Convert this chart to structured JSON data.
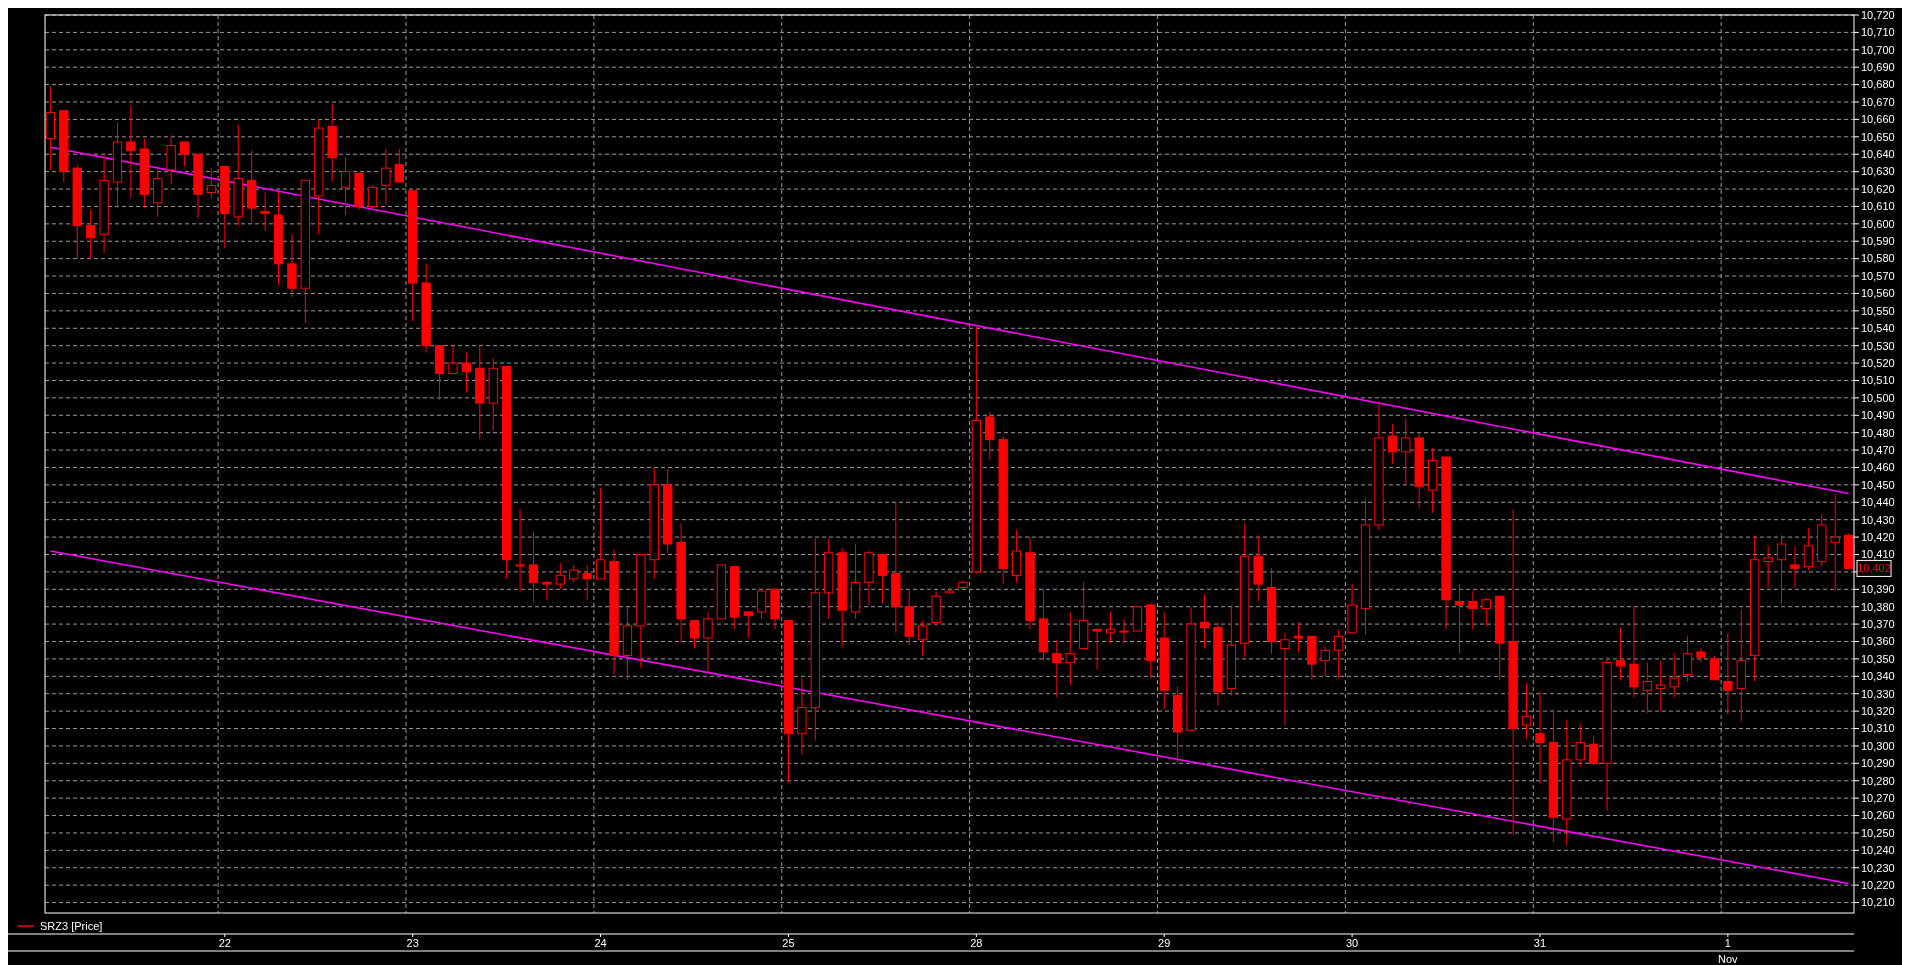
{
  "chart_data": {
    "type": "candlestick",
    "categories": [
      null,
      null,
      null,
      null,
      null,
      null,
      null,
      null,
      null,
      null,
      null,
      null,
      null,
      "22",
      null,
      null,
      null,
      null,
      null,
      null,
      null,
      null,
      null,
      null,
      null,
      null,
      null,
      "23",
      null,
      null,
      null,
      null,
      null,
      null,
      null,
      null,
      null,
      null,
      null,
      null,
      null,
      "24",
      null,
      null,
      null,
      null,
      null,
      null,
      null,
      null,
      null,
      null,
      null,
      null,
      null,
      "25",
      null,
      null,
      null,
      null,
      null,
      null,
      null,
      null,
      null,
      null,
      null,
      null,
      null,
      "28",
      null,
      null,
      null,
      null,
      null,
      null,
      null,
      null,
      null,
      null,
      null,
      null,
      null,
      "29",
      null,
      null,
      null,
      null,
      null,
      null,
      null,
      null,
      null,
      null,
      null,
      null,
      null,
      "30",
      null,
      null,
      null,
      null,
      null,
      null,
      null,
      null,
      null,
      null,
      null,
      null,
      null,
      "31",
      null,
      null,
      null,
      null,
      null,
      null,
      null,
      null,
      null,
      null,
      null,
      null,
      null,
      "1",
      null,
      null,
      null,
      null,
      null,
      null,
      null,
      null,
      null
    ],
    "series": [
      {
        "name": "SRZ3 [Price]",
        "color": "#ff0000",
        "ohlc": [
          [
            10649,
            10679,
            10631,
            10664
          ],
          [
            10665,
            10665,
            10624,
            10630
          ],
          [
            10632,
            10634,
            10580,
            10599
          ],
          [
            10599,
            10608,
            10580,
            10592
          ],
          [
            10594,
            10640,
            10583,
            10625
          ],
          [
            10624,
            10658,
            10609,
            10647
          ],
          [
            10647,
            10668,
            10615,
            10642
          ],
          [
            10643,
            10649,
            10609,
            10617
          ],
          [
            10612,
            10631,
            10604,
            10626
          ],
          [
            10631,
            10651,
            10623,
            10645
          ],
          [
            10647,
            10647,
            10633,
            10640
          ],
          [
            10640,
            10640,
            10603,
            10617
          ],
          [
            10618,
            10632,
            10615,
            10622
          ],
          [
            10633,
            10633,
            10586,
            10606
          ],
          [
            10604,
            10657,
            10599,
            10626
          ],
          [
            10625,
            10642,
            10601,
            10609
          ],
          [
            10607,
            10618,
            10596,
            10606
          ],
          [
            10605,
            10618,
            10565,
            10577
          ],
          [
            10577,
            10594,
            10558,
            10563
          ],
          [
            10563,
            10625,
            10543,
            10625
          ],
          [
            10616,
            10660,
            10594,
            10655
          ],
          [
            10656,
            10669,
            10624,
            10638
          ],
          [
            10621,
            10638,
            10605,
            10630
          ],
          [
            10629,
            10629,
            10608,
            10610
          ],
          [
            10610,
            10622,
            10609,
            10621
          ],
          [
            10622,
            10643,
            10611,
            10632
          ],
          [
            10634,
            10643,
            10624,
            10624
          ],
          [
            10619,
            10619,
            10544,
            10566
          ],
          [
            10566,
            10577,
            10526,
            10530
          ],
          [
            10530,
            10530,
            10499,
            10514
          ],
          [
            10514,
            10530,
            10514,
            10520
          ],
          [
            10520,
            10526,
            10503,
            10515
          ],
          [
            10517,
            10530,
            10476,
            10497
          ],
          [
            10497,
            10523,
            10481,
            10517
          ],
          [
            10518,
            10518,
            10396,
            10407
          ],
          [
            10404,
            10436,
            10389,
            10404
          ],
          [
            10404,
            10423,
            10383,
            10394
          ],
          [
            10394,
            10395,
            10384,
            10393
          ],
          [
            10393,
            10405,
            10390,
            10398
          ],
          [
            10396,
            10404,
            10394,
            10401
          ],
          [
            10399,
            10404,
            10384,
            10396
          ],
          [
            10396,
            10448,
            10396,
            10407
          ],
          [
            10406,
            10413,
            10341,
            10352
          ],
          [
            10352,
            10380,
            10338,
            10369
          ],
          [
            10369,
            10410,
            10345,
            10410
          ],
          [
            10407,
            10460,
            10396,
            10450
          ],
          [
            10450,
            10459,
            10411,
            10416
          ],
          [
            10417,
            10428,
            10359,
            10373
          ],
          [
            10372,
            10372,
            10356,
            10362
          ],
          [
            10362,
            10377,
            10342,
            10373
          ],
          [
            10373,
            10404,
            10373,
            10404
          ],
          [
            10403,
            10403,
            10367,
            10374
          ],
          [
            10377,
            10377,
            10362,
            10375
          ],
          [
            10377,
            10389,
            10373,
            10389
          ],
          [
            10390,
            10390,
            10367,
            10373
          ],
          [
            10372,
            10372,
            10279,
            10307
          ],
          [
            10307,
            10339,
            10295,
            10322
          ],
          [
            10322,
            10419,
            10303,
            10388
          ],
          [
            10388,
            10419,
            10373,
            10411
          ],
          [
            10411,
            10414,
            10357,
            10378
          ],
          [
            10377,
            10416,
            10373,
            10394
          ],
          [
            10394,
            10412,
            10381,
            10411
          ],
          [
            10410,
            10410,
            10382,
            10398
          ],
          [
            10399,
            10440,
            10365,
            10380
          ],
          [
            10380,
            10390,
            10358,
            10363
          ],
          [
            10361,
            10372,
            10352,
            10369
          ],
          [
            10371,
            10389,
            10369,
            10386
          ],
          [
            10388,
            10391,
            10388,
            10389
          ],
          [
            10391,
            10395,
            10391,
            10394
          ],
          [
            10400,
            10541,
            10399,
            10487
          ],
          [
            10489,
            10492,
            10464,
            10476
          ],
          [
            10476,
            10478,
            10393,
            10402
          ],
          [
            10398,
            10424,
            10394,
            10412
          ],
          [
            10411,
            10420,
            10367,
            10372
          ],
          [
            10373,
            10390,
            10349,
            10354
          ],
          [
            10353,
            10361,
            10328,
            10348
          ],
          [
            10348,
            10377,
            10335,
            10353
          ],
          [
            10356,
            10394,
            10356,
            10372
          ],
          [
            10367,
            10367,
            10344,
            10366
          ],
          [
            10365,
            10377,
            10359,
            10367
          ],
          [
            10366,
            10373,
            10359,
            10366
          ],
          [
            10366,
            10380,
            10366,
            10380
          ],
          [
            10381,
            10382,
            10339,
            10349
          ],
          [
            10362,
            10377,
            10321,
            10332
          ],
          [
            10329,
            10334,
            10290,
            10308
          ],
          [
            10309,
            10380,
            10309,
            10370
          ],
          [
            10371,
            10387,
            10356,
            10368
          ],
          [
            10368,
            10371,
            10323,
            10331
          ],
          [
            10333,
            10380,
            10329,
            10358
          ],
          [
            10359,
            10428,
            10351,
            10409
          ],
          [
            10409,
            10421,
            10383,
            10393
          ],
          [
            10391,
            10402,
            10353,
            10360
          ],
          [
            10356,
            10365,
            10312,
            10361
          ],
          [
            10363,
            10371,
            10354,
            10362
          ],
          [
            10363,
            10363,
            10338,
            10347
          ],
          [
            10349,
            10357,
            10340,
            10355
          ],
          [
            10355,
            10367,
            10339,
            10363
          ],
          [
            10365,
            10393,
            10365,
            10381
          ],
          [
            10379,
            10442,
            10364,
            10427
          ],
          [
            10427,
            10498,
            10424,
            10477
          ],
          [
            10478,
            10485,
            10462,
            10469
          ],
          [
            10469,
            10488,
            10450,
            10477
          ],
          [
            10477,
            10480,
            10437,
            10449
          ],
          [
            10447,
            10471,
            10434,
            10464
          ],
          [
            10466,
            10466,
            10367,
            10384
          ],
          [
            10383,
            10393,
            10353,
            10381
          ],
          [
            10383,
            10389,
            10367,
            10379
          ],
          [
            10379,
            10385,
            10369,
            10384
          ],
          [
            10386,
            10386,
            10338,
            10359
          ],
          [
            10360,
            10436,
            10249,
            10310
          ],
          [
            10312,
            10336,
            10304,
            10317
          ],
          [
            10307,
            10331,
            10278,
            10302
          ],
          [
            10302,
            10321,
            10245,
            10259
          ],
          [
            10258,
            10315,
            10243,
            10292
          ],
          [
            10292,
            10313,
            10288,
            10302
          ],
          [
            10301,
            10306,
            10289,
            10290
          ],
          [
            10290,
            10351,
            10263,
            10348
          ],
          [
            10349,
            10368,
            10338,
            10346
          ],
          [
            10347,
            10380,
            10328,
            10334
          ],
          [
            10332,
            10348,
            10319,
            10337
          ],
          [
            10333,
            10349,
            10320,
            10335
          ],
          [
            10334,
            10353,
            10328,
            10339
          ],
          [
            10341,
            10363,
            10337,
            10353
          ],
          [
            10354,
            10356,
            10348,
            10351
          ],
          [
            10350,
            10352,
            10338,
            10338
          ],
          [
            10337,
            10365,
            10318,
            10332
          ],
          [
            10333,
            10378,
            10314,
            10349
          ],
          [
            10352,
            10421,
            10337,
            10407
          ],
          [
            10406,
            10415,
            10391,
            10408
          ],
          [
            10407,
            10421,
            10382,
            10416
          ],
          [
            10404,
            10415,
            10391,
            10402
          ],
          [
            10403,
            10425,
            10401,
            10415
          ],
          [
            10406,
            10433,
            10403,
            10427
          ],
          [
            10417,
            10445,
            10389,
            10420
          ],
          [
            10421,
            10422,
            10402,
            10402
          ]
        ]
      },
      {
        "type": "line",
        "color": "#ff00ff",
        "values": [
          10644,
          null,
          null,
          null,
          null,
          null,
          null,
          null,
          null,
          null,
          null,
          null,
          null,
          null,
          null,
          null,
          null,
          null,
          null,
          null,
          null,
          null,
          null,
          null,
          null,
          null,
          null,
          null,
          null,
          null,
          null,
          null,
          null,
          null,
          null,
          null,
          null,
          null,
          null,
          null,
          null,
          null,
          null,
          null,
          null,
          null,
          null,
          null,
          null,
          null,
          null,
          null,
          null,
          null,
          null,
          null,
          null,
          null,
          null,
          null,
          null,
          null,
          null,
          null,
          null,
          null,
          null,
          null,
          null,
          null,
          null,
          null,
          null,
          null,
          null,
          null,
          null,
          null,
          null,
          null,
          null,
          null,
          null,
          null,
          null,
          null,
          null,
          null,
          null,
          null,
          null,
          null,
          null,
          null,
          null,
          null,
          null,
          null,
          null,
          null,
          null,
          null,
          null,
          null,
          null,
          null,
          null,
          null,
          null,
          null,
          null,
          null,
          null,
          null,
          null,
          null,
          null,
          null,
          null,
          null,
          null,
          null,
          null,
          null,
          null,
          null,
          null,
          null,
          null,
          null,
          null,
          null,
          null,
          null,
          10445
        ]
      },
      {
        "type": "line",
        "color": "#ff00ff",
        "values": [
          10412,
          null,
          null,
          null,
          null,
          null,
          null,
          null,
          null,
          null,
          null,
          null,
          null,
          null,
          null,
          null,
          null,
          null,
          null,
          null,
          null,
          null,
          null,
          null,
          null,
          null,
          null,
          null,
          null,
          null,
          null,
          null,
          null,
          null,
          null,
          null,
          null,
          null,
          null,
          null,
          null,
          null,
          null,
          null,
          null,
          null,
          null,
          null,
          null,
          null,
          null,
          null,
          null,
          null,
          null,
          null,
          null,
          null,
          null,
          null,
          null,
          null,
          null,
          null,
          null,
          null,
          null,
          null,
          null,
          null,
          null,
          null,
          null,
          null,
          null,
          null,
          null,
          null,
          null,
          null,
          null,
          null,
          null,
          null,
          null,
          null,
          null,
          null,
          null,
          null,
          null,
          null,
          null,
          null,
          null,
          null,
          null,
          null,
          null,
          null,
          null,
          null,
          null,
          null,
          null,
          null,
          null,
          null,
          null,
          null,
          null,
          null,
          null,
          null,
          null,
          null,
          null,
          null,
          null,
          null,
          null,
          null,
          null,
          null,
          null,
          null,
          null,
          null,
          null,
          null,
          null,
          null,
          null,
          null,
          10221
        ]
      }
    ],
    "ylim": [
      10204,
      10720
    ],
    "yticks": [
      {
        "value": 10210,
        "label": "10,210"
      },
      {
        "value": 10220,
        "label": "10,220"
      },
      {
        "value": 10230,
        "label": "10,230"
      },
      {
        "value": 10240,
        "label": "10,240"
      },
      {
        "value": 10250,
        "label": "10,250"
      },
      {
        "value": 10260,
        "label": "10,260"
      },
      {
        "value": 10270,
        "label": "10,270"
      },
      {
        "value": 10280,
        "label": "10,280"
      },
      {
        "value": 10290,
        "label": "10,290"
      },
      {
        "value": 10300,
        "label": "10,300"
      },
      {
        "value": 10310,
        "label": "10,310"
      },
      {
        "value": 10320,
        "label": "10,320"
      },
      {
        "value": 10330,
        "label": "10,330"
      },
      {
        "value": 10340,
        "label": "10,340"
      },
      {
        "value": 10350,
        "label": "10,350"
      },
      {
        "value": 10360,
        "label": "10,360"
      },
      {
        "value": 10370,
        "label": "10,370"
      },
      {
        "value": 10380,
        "label": "10,380"
      },
      {
        "value": 10390,
        "label": "10,390"
      },
      {
        "value": 10400,
        "label": null
      },
      {
        "value": 10410,
        "label": "10,410"
      },
      {
        "value": 10420,
        "label": "10,420"
      },
      {
        "value": 10430,
        "label": "10,430"
      },
      {
        "value": 10440,
        "label": "10,440"
      },
      {
        "value": 10450,
        "label": "10,450"
      },
      {
        "value": 10460,
        "label": "10,460"
      },
      {
        "value": 10470,
        "label": "10,470"
      },
      {
        "value": 10480,
        "label": "10,480"
      },
      {
        "value": 10490,
        "label": "10,490"
      },
      {
        "value": 10500,
        "label": "10,500"
      },
      {
        "value": 10510,
        "label": "10,510"
      },
      {
        "value": 10520,
        "label": "10,520"
      },
      {
        "value": 10530,
        "label": "10,530"
      },
      {
        "value": 10540,
        "label": "10,540"
      },
      {
        "value": 10550,
        "label": "10,550"
      },
      {
        "value": 10560,
        "label": "10,560"
      },
      {
        "value": 10570,
        "label": "10,570"
      },
      {
        "value": 10580,
        "label": "10,580"
      },
      {
        "value": 10590,
        "label": "10,590"
      },
      {
        "value": 10600,
        "label": "10,600"
      },
      {
        "value": 10610,
        "label": "10,610"
      },
      {
        "value": 10620,
        "label": "10,620"
      },
      {
        "value": 10630,
        "label": "10,630"
      },
      {
        "value": 10640,
        "label": "10,640"
      },
      {
        "value": 10650,
        "label": "10,650"
      },
      {
        "value": 10660,
        "label": "10,660"
      },
      {
        "value": 10670,
        "label": "10,670"
      },
      {
        "value": 10680,
        "label": "10,680"
      },
      {
        "value": 10690,
        "label": "10,690"
      },
      {
        "value": 10700,
        "label": "10,700"
      },
      {
        "value": 10710,
        "label": "10,710"
      },
      {
        "value": 10720,
        "label": "10,720"
      }
    ],
    "annotations": [
      {
        "text": "10,402",
        "y": 10402
      },
      "Nov"
    ],
    "grid": true,
    "legend": "bottom left"
  }
}
